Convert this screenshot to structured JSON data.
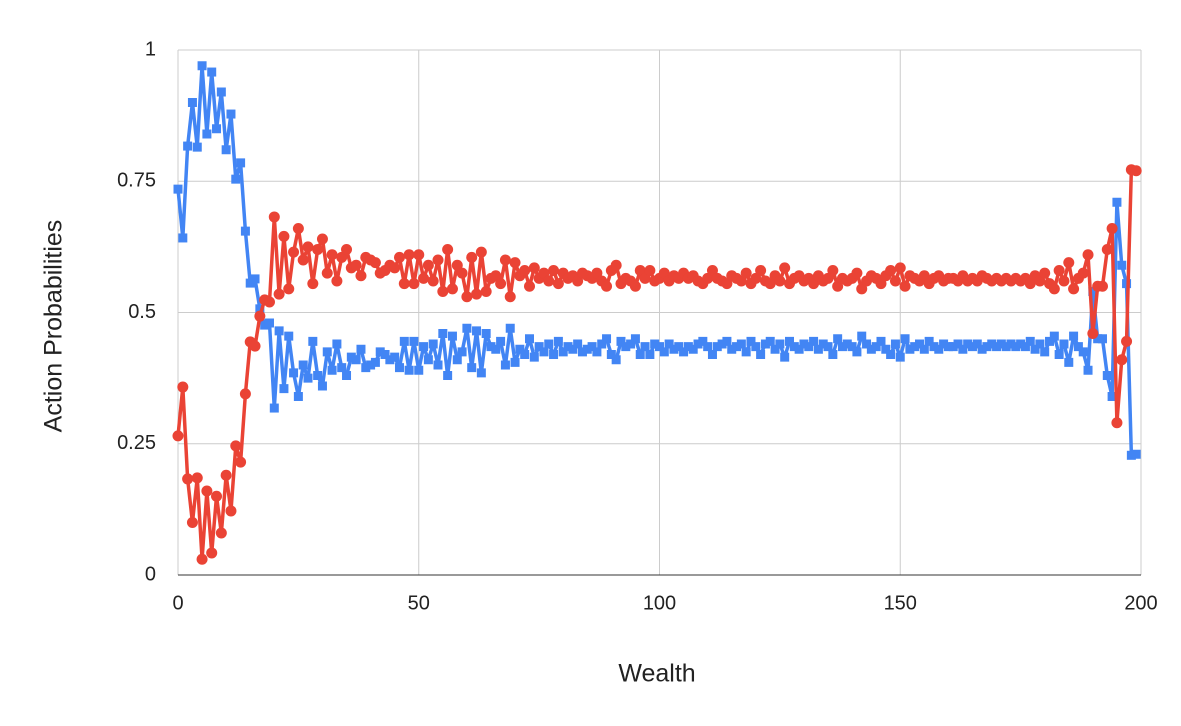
{
  "chart_data": {
    "type": "line",
    "xlabel": "Wealth",
    "ylabel": "Action Probabilities",
    "xlim": [
      0,
      200
    ],
    "xticks": [
      0,
      50,
      100,
      150,
      200
    ],
    "ylim": [
      0,
      1
    ],
    "yticks": [
      0,
      0.25,
      0.5,
      0.75,
      1
    ],
    "grid": true,
    "x": [
      0,
      1,
      2,
      3,
      4,
      5,
      6,
      7,
      8,
      9,
      10,
      11,
      12,
      13,
      14,
      15,
      16,
      17,
      18,
      19,
      20,
      21,
      22,
      23,
      24,
      25,
      26,
      27,
      28,
      29,
      30,
      31,
      32,
      33,
      34,
      35,
      36,
      37,
      38,
      39,
      40,
      41,
      42,
      43,
      44,
      45,
      46,
      47,
      48,
      49,
      50,
      51,
      52,
      53,
      54,
      55,
      56,
      57,
      58,
      59,
      60,
      61,
      62,
      63,
      64,
      65,
      66,
      67,
      68,
      69,
      70,
      71,
      72,
      73,
      74,
      75,
      76,
      77,
      78,
      79,
      80,
      81,
      82,
      83,
      84,
      85,
      86,
      87,
      88,
      89,
      90,
      91,
      92,
      93,
      94,
      95,
      96,
      97,
      98,
      99,
      100,
      101,
      102,
      103,
      104,
      105,
      106,
      107,
      108,
      109,
      110,
      111,
      112,
      113,
      114,
      115,
      116,
      117,
      118,
      119,
      120,
      121,
      122,
      123,
      124,
      125,
      126,
      127,
      128,
      129,
      130,
      131,
      132,
      133,
      134,
      135,
      136,
      137,
      138,
      139,
      140,
      141,
      142,
      143,
      144,
      145,
      146,
      147,
      148,
      149,
      150,
      151,
      152,
      153,
      154,
      155,
      156,
      157,
      158,
      159,
      160,
      161,
      162,
      163,
      164,
      165,
      166,
      167,
      168,
      169,
      170,
      171,
      172,
      173,
      174,
      175,
      176,
      177,
      178,
      179,
      180,
      181,
      182,
      183,
      184,
      185,
      186,
      187,
      188,
      189,
      190,
      191,
      192,
      193,
      194,
      195,
      196,
      197,
      198,
      199
    ],
    "series": [
      {
        "color": "#4285f4",
        "marker": "square",
        "values": [
          0.735,
          0.642,
          0.817,
          0.9,
          0.815,
          0.97,
          0.84,
          0.958,
          0.85,
          0.92,
          0.81,
          0.878,
          0.754,
          0.785,
          0.655,
          0.556,
          0.564,
          0.507,
          0.476,
          0.48,
          0.318,
          0.465,
          0.355,
          0.455,
          0.385,
          0.34,
          0.4,
          0.375,
          0.445,
          0.38,
          0.36,
          0.425,
          0.39,
          0.44,
          0.395,
          0.38,
          0.415,
          0.41,
          0.43,
          0.395,
          0.4,
          0.405,
          0.425,
          0.42,
          0.41,
          0.415,
          0.395,
          0.445,
          0.39,
          0.445,
          0.39,
          0.435,
          0.41,
          0.44,
          0.4,
          0.46,
          0.38,
          0.455,
          0.41,
          0.425,
          0.47,
          0.395,
          0.465,
          0.385,
          0.46,
          0.435,
          0.43,
          0.445,
          0.4,
          0.47,
          0.405,
          0.43,
          0.42,
          0.45,
          0.415,
          0.435,
          0.425,
          0.44,
          0.42,
          0.445,
          0.425,
          0.435,
          0.43,
          0.44,
          0.425,
          0.43,
          0.435,
          0.425,
          0.44,
          0.45,
          0.42,
          0.41,
          0.445,
          0.435,
          0.44,
          0.45,
          0.42,
          0.435,
          0.42,
          0.44,
          0.435,
          0.425,
          0.44,
          0.43,
          0.435,
          0.425,
          0.435,
          0.43,
          0.44,
          0.445,
          0.435,
          0.42,
          0.435,
          0.44,
          0.445,
          0.43,
          0.435,
          0.44,
          0.425,
          0.445,
          0.435,
          0.42,
          0.44,
          0.445,
          0.43,
          0.44,
          0.415,
          0.445,
          0.435,
          0.43,
          0.44,
          0.435,
          0.445,
          0.43,
          0.44,
          0.435,
          0.42,
          0.45,
          0.435,
          0.44,
          0.435,
          0.425,
          0.455,
          0.44,
          0.43,
          0.435,
          0.445,
          0.43,
          0.42,
          0.44,
          0.415,
          0.45,
          0.43,
          0.435,
          0.44,
          0.43,
          0.445,
          0.435,
          0.43,
          0.44,
          0.435,
          0.435,
          0.44,
          0.43,
          0.44,
          0.435,
          0.44,
          0.43,
          0.435,
          0.44,
          0.435,
          0.44,
          0.435,
          0.44,
          0.435,
          0.44,
          0.435,
          0.445,
          0.43,
          0.44,
          0.425,
          0.445,
          0.455,
          0.42,
          0.44,
          0.405,
          0.455,
          0.435,
          0.425,
          0.39,
          0.54,
          0.45,
          0.45,
          0.38,
          0.34,
          0.71,
          0.59,
          0.555,
          0.228,
          0.23
        ]
      },
      {
        "color": "#ea4335",
        "marker": "circle",
        "values": [
          0.265,
          0.358,
          0.183,
          0.1,
          0.185,
          0.03,
          0.16,
          0.042,
          0.15,
          0.08,
          0.19,
          0.122,
          0.246,
          0.215,
          0.345,
          0.444,
          0.436,
          0.493,
          0.524,
          0.52,
          0.682,
          0.535,
          0.645,
          0.545,
          0.615,
          0.66,
          0.6,
          0.625,
          0.555,
          0.62,
          0.64,
          0.575,
          0.61,
          0.56,
          0.605,
          0.62,
          0.585,
          0.59,
          0.57,
          0.605,
          0.6,
          0.595,
          0.575,
          0.58,
          0.59,
          0.585,
          0.605,
          0.555,
          0.61,
          0.555,
          0.61,
          0.565,
          0.59,
          0.56,
          0.6,
          0.54,
          0.62,
          0.545,
          0.59,
          0.575,
          0.53,
          0.605,
          0.535,
          0.615,
          0.54,
          0.565,
          0.57,
          0.555,
          0.6,
          0.53,
          0.595,
          0.57,
          0.58,
          0.55,
          0.585,
          0.565,
          0.575,
          0.56,
          0.58,
          0.555,
          0.575,
          0.565,
          0.57,
          0.56,
          0.575,
          0.57,
          0.565,
          0.575,
          0.56,
          0.55,
          0.58,
          0.59,
          0.555,
          0.565,
          0.56,
          0.55,
          0.58,
          0.565,
          0.58,
          0.56,
          0.565,
          0.575,
          0.56,
          0.57,
          0.565,
          0.575,
          0.565,
          0.57,
          0.56,
          0.555,
          0.565,
          0.58,
          0.565,
          0.56,
          0.555,
          0.57,
          0.565,
          0.56,
          0.575,
          0.555,
          0.565,
          0.58,
          0.56,
          0.555,
          0.57,
          0.56,
          0.585,
          0.555,
          0.565,
          0.57,
          0.56,
          0.565,
          0.555,
          0.57,
          0.56,
          0.565,
          0.58,
          0.55,
          0.565,
          0.56,
          0.565,
          0.575,
          0.545,
          0.56,
          0.57,
          0.565,
          0.555,
          0.57,
          0.58,
          0.56,
          0.585,
          0.55,
          0.57,
          0.565,
          0.56,
          0.57,
          0.555,
          0.565,
          0.57,
          0.56,
          0.565,
          0.565,
          0.56,
          0.57,
          0.56,
          0.565,
          0.56,
          0.57,
          0.565,
          0.56,
          0.565,
          0.56,
          0.565,
          0.56,
          0.565,
          0.56,
          0.565,
          0.555,
          0.57,
          0.56,
          0.575,
          0.555,
          0.545,
          0.58,
          0.56,
          0.595,
          0.545,
          0.565,
          0.575,
          0.61,
          0.46,
          0.55,
          0.55,
          0.62,
          0.66,
          0.29,
          0.41,
          0.445,
          0.772,
          0.77
        ]
      }
    ]
  }
}
